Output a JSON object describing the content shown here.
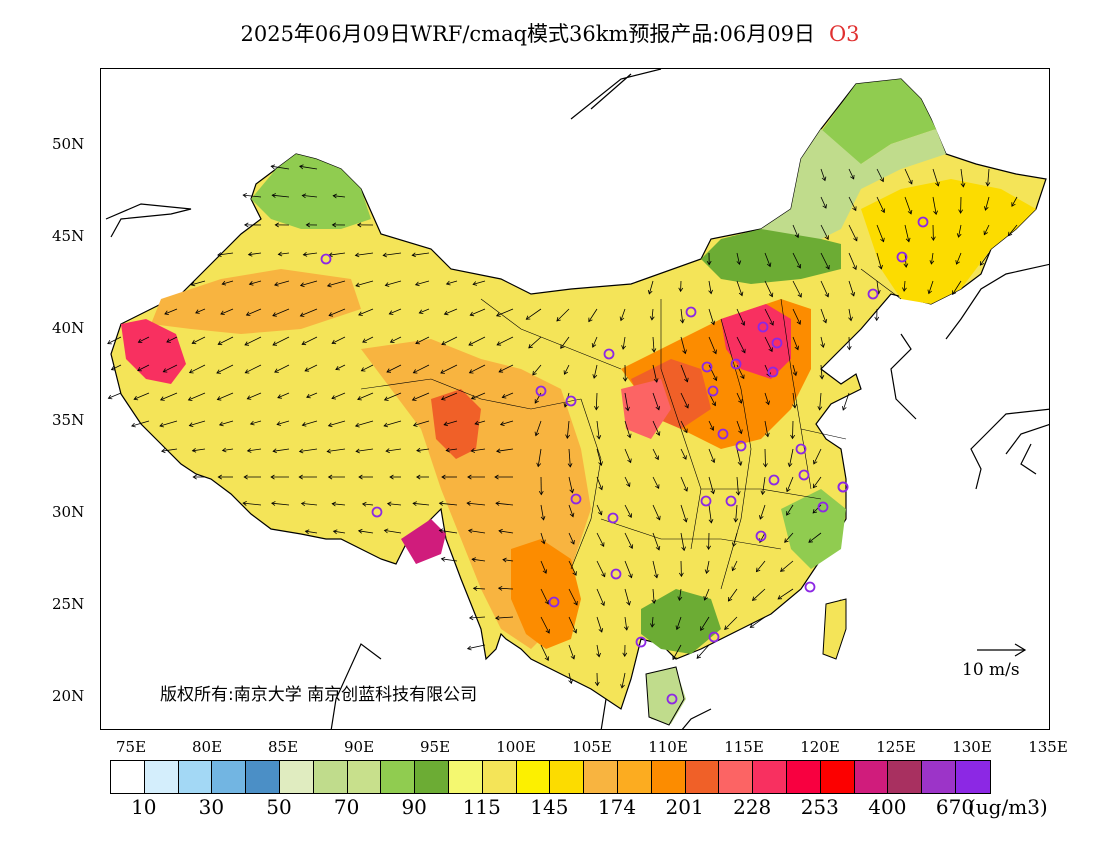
{
  "title": {
    "main": "2025年06月09日WRF/cmaq模式36km预报产品:06月09日",
    "pollutant": "O3"
  },
  "map": {
    "lat_labels": [
      "50N",
      "45N",
      "40N",
      "35N",
      "30N",
      "25N",
      "20N"
    ],
    "lon_labels": [
      "75E",
      "80E",
      "85E",
      "90E",
      "95E",
      "100E",
      "105E",
      "110E",
      "115E",
      "120E",
      "125E",
      "130E",
      "135E"
    ],
    "copyright": "版权所有:南京大学 南京创蓝科技有限公司",
    "wind_reference": "10 m/s"
  },
  "legend": {
    "colors": [
      "#ffffff",
      "#d4eefc",
      "#a3d8f5",
      "#72b5e2",
      "#4b8fc6",
      "#e0ecc0",
      "#c0dc8c",
      "#c8e08c",
      "#90cc50",
      "#6cac34",
      "#f4f870",
      "#f4e458",
      "#fcf000",
      "#fcdc00",
      "#f8b440",
      "#fcac20",
      "#fc8c00",
      "#f06028",
      "#fc6464",
      "#f83060",
      "#f80040",
      "#fc0000",
      "#d01c7c",
      "#a83060",
      "#9c34c8",
      "#8c28e4"
    ],
    "labels": [
      "10",
      "30",
      "50",
      "70",
      "90",
      "115",
      "145",
      "174",
      "201",
      "228",
      "253",
      "400",
      "670"
    ],
    "unit": "(ug/m3)"
  }
}
